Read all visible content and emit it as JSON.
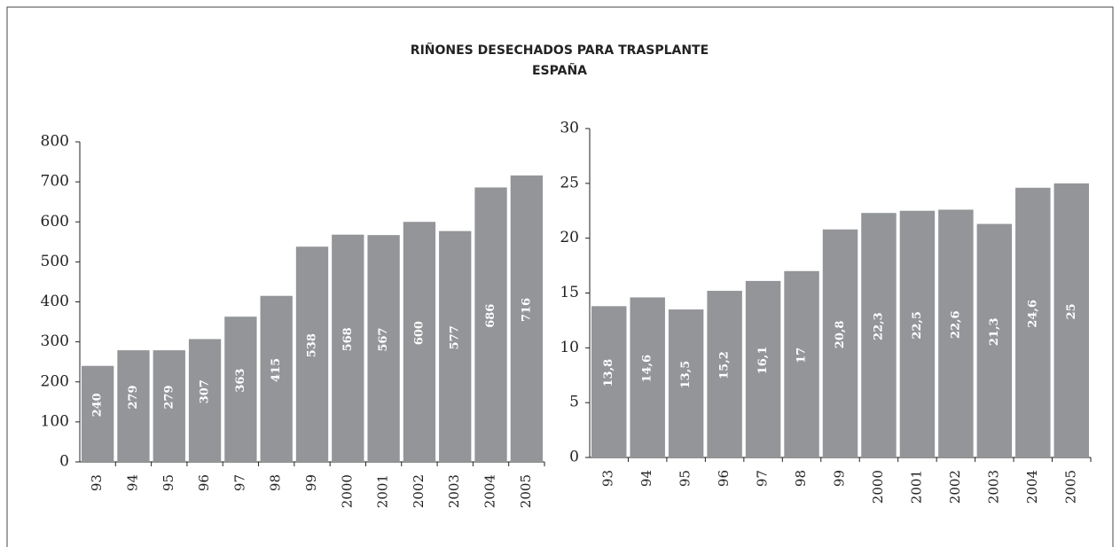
{
  "title": "RIÑONES DESECHADOS PARA TRASPLANTE",
  "subtitle": "ESPAÑA",
  "chart_data": [
    {
      "type": "bar",
      "color": "#939598",
      "categories": [
        "93",
        "94",
        "95",
        "96",
        "97",
        "98",
        "99",
        "2000",
        "2001",
        "2002",
        "2003",
        "2004",
        "2005"
      ],
      "values": [
        240,
        279,
        279,
        307,
        363,
        415,
        538,
        568,
        567,
        600,
        577,
        686,
        716
      ],
      "ylim": [
        0,
        800
      ],
      "yticks": [
        0,
        100,
        200,
        300,
        400,
        500,
        600,
        700,
        800
      ]
    },
    {
      "type": "bar",
      "color": "#939598",
      "categories": [
        "93",
        "94",
        "95",
        "96",
        "97",
        "98",
        "99",
        "2000",
        "2001",
        "2002",
        "2003",
        "2004",
        "2005"
      ],
      "values": [
        13.8,
        14.6,
        13.5,
        15.2,
        16.1,
        17,
        20.8,
        22.3,
        22.5,
        22.6,
        21.3,
        24.6,
        25
      ],
      "value_labels": [
        "13,8",
        "14,6",
        "13,5",
        "15,2",
        "16,1",
        "17",
        "20,8",
        "22,3",
        "22,5",
        "22,6",
        "21,3",
        "24,6",
        "25"
      ],
      "ylim": [
        0,
        30
      ],
      "yticks": [
        0,
        5,
        10,
        15,
        20,
        25,
        30
      ]
    }
  ]
}
